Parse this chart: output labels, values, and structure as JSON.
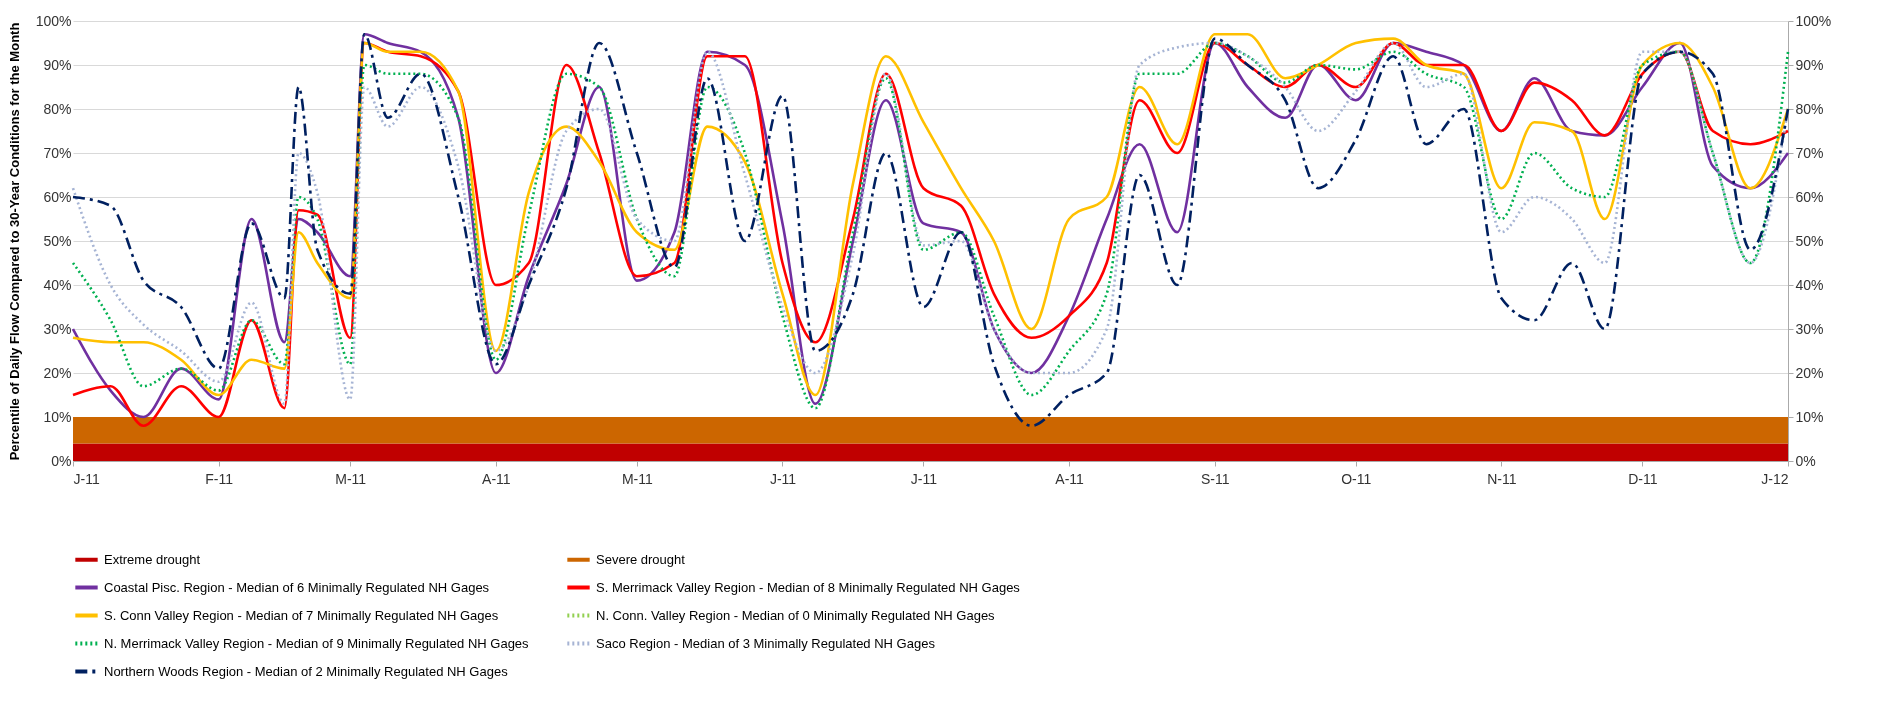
{
  "chart_data": {
    "type": "line",
    "ylabel": "Percentile of Daily Flow Compared to 30-Year Conditions for the Month",
    "x": [
      "2011-01-01",
      "2011-01-09",
      "2011-01-16",
      "2011-01-24",
      "2011-02-01",
      "2011-02-08",
      "2011-02-15",
      "2011-02-18",
      "2011-02-22",
      "2011-03-01",
      "2011-03-04",
      "2011-03-09",
      "2011-03-16",
      "2011-03-24",
      "2011-04-01",
      "2011-04-08",
      "2011-04-16",
      "2011-04-23",
      "2011-05-01",
      "2011-05-09",
      "2011-05-16",
      "2011-05-24",
      "2011-06-01",
      "2011-06-08",
      "2011-06-16",
      "2011-06-23",
      "2011-07-01",
      "2011-07-09",
      "2011-07-16",
      "2011-07-24",
      "2011-08-01",
      "2011-08-09",
      "2011-08-16",
      "2011-08-24",
      "2011-09-01",
      "2011-09-08",
      "2011-09-16",
      "2011-09-23",
      "2011-10-01",
      "2011-10-09",
      "2011-10-16",
      "2011-10-24",
      "2011-11-01",
      "2011-11-08",
      "2011-11-16",
      "2011-11-23",
      "2011-12-01",
      "2011-12-09",
      "2011-12-16",
      "2011-12-24",
      "2012-01-01"
    ],
    "xlim": [
      "2011-01-01",
      "2012-01-01"
    ],
    "xticks": [
      {
        "value": "2011-01-01",
        "label": "J-11"
      },
      {
        "value": "2011-02-01",
        "label": "F-11"
      },
      {
        "value": "2011-03-01",
        "label": "M-11"
      },
      {
        "value": "2011-04-01",
        "label": "A-11"
      },
      {
        "value": "2011-05-01",
        "label": "M-11"
      },
      {
        "value": "2011-06-01",
        "label": "J-11"
      },
      {
        "value": "2011-07-01",
        "label": "J-11"
      },
      {
        "value": "2011-08-01",
        "label": "A-11"
      },
      {
        "value": "2011-09-01",
        "label": "S-11"
      },
      {
        "value": "2011-10-01",
        "label": "O-11"
      },
      {
        "value": "2011-11-01",
        "label": "N-11"
      },
      {
        "value": "2011-12-01",
        "label": "D-11"
      },
      {
        "value": "2012-01-01",
        "label": "J-12"
      }
    ],
    "ylim": [
      0,
      100
    ],
    "yticks": [
      {
        "value": 0,
        "label": "0%"
      },
      {
        "value": 10,
        "label": "10%"
      },
      {
        "value": 20,
        "label": "20%"
      },
      {
        "value": 30,
        "label": "30%"
      },
      {
        "value": 40,
        "label": "40%"
      },
      {
        "value": 50,
        "label": "50%"
      },
      {
        "value": 60,
        "label": "60%"
      },
      {
        "value": 70,
        "label": "70%"
      },
      {
        "value": 80,
        "label": "80%"
      },
      {
        "value": 90,
        "label": "90%"
      },
      {
        "value": 100,
        "label": "100%"
      }
    ],
    "y2lim": [
      0,
      100
    ],
    "y2ticks": [
      {
        "value": 0,
        "label": "0%"
      },
      {
        "value": 10,
        "label": "10%"
      },
      {
        "value": 20,
        "label": "20%"
      },
      {
        "value": 30,
        "label": "30%"
      },
      {
        "value": 40,
        "label": "40%"
      },
      {
        "value": 50,
        "label": "50%"
      },
      {
        "value": 60,
        "label": "60%"
      },
      {
        "value": 70,
        "label": "70%"
      },
      {
        "value": 80,
        "label": "80%"
      },
      {
        "value": 90,
        "label": "90%"
      },
      {
        "value": 100,
        "label": "100%"
      }
    ],
    "grid": "y",
    "legend": "bottom",
    "bands": [
      {
        "axis": "y",
        "from": 0,
        "to": 4,
        "label": "Extreme drought",
        "color": "#c00000"
      },
      {
        "axis": "y",
        "from": 4,
        "to": 10,
        "label": "Severe drought",
        "color": "#cc6600"
      }
    ],
    "series": [
      {
        "name": "Coastal Pisc. Region - Median of 6 Minimally Regulated NH Gages",
        "color": "#7030a0",
        "line_style": "solid",
        "values": [
          30,
          16,
          10,
          21,
          14,
          55,
          27,
          55,
          52,
          42,
          97,
          95,
          93,
          78,
          20,
          42,
          63,
          85,
          41,
          52,
          93,
          90,
          54,
          13,
          50,
          82,
          54,
          52,
          30,
          20,
          33,
          55,
          72,
          52,
          95,
          85,
          78,
          90,
          82,
          95,
          93,
          90,
          75,
          87,
          75,
          74,
          85,
          95,
          67,
          62,
          70
        ]
      },
      {
        "name": "S. Merrimack Valley Region - Median of 8 Minimally Regulated NH Gages",
        "color": "#ff0000",
        "line_style": "solid",
        "values": [
          15,
          17,
          8,
          17,
          10,
          32,
          12,
          57,
          56,
          28,
          95,
          93,
          92,
          84,
          40,
          45,
          90,
          70,
          42,
          45,
          92,
          92,
          45,
          27,
          55,
          88,
          62,
          58,
          38,
          28,
          33,
          45,
          82,
          70,
          95,
          90,
          85,
          90,
          85,
          95,
          90,
          90,
          75,
          86,
          82,
          74,
          88,
          93,
          75,
          72,
          75
        ]
      },
      {
        "name": "S. Conn Valley Region - Median of 7 Minimally Regulated NH Gages",
        "color": "#ffc000",
        "line_style": "solid",
        "values": [
          28,
          27,
          27,
          23,
          15,
          23,
          21,
          52,
          45,
          37,
          95,
          93,
          93,
          84,
          25,
          61,
          76,
          68,
          52,
          48,
          76,
          68,
          38,
          15,
          63,
          92,
          77,
          62,
          50,
          30,
          55,
          60,
          85,
          72,
          97,
          97,
          87,
          90,
          95,
          96,
          90,
          88,
          62,
          77,
          75,
          55,
          90,
          95,
          85,
          62,
          80
        ]
      },
      {
        "name": "N. Conn. Valley Region - Median of 0 Minimally Regulated NH Gages",
        "color": "#92d050",
        "line_style": "dotted",
        "values": [
          null,
          null,
          null,
          null,
          null,
          null,
          null,
          null,
          null,
          null,
          null,
          null,
          null,
          null,
          null,
          null,
          null,
          null,
          null,
          null,
          null,
          null,
          null,
          null,
          null,
          null,
          null,
          null,
          null,
          null,
          null,
          null,
          null,
          null,
          null,
          null,
          null,
          null,
          null,
          null,
          null,
          null,
          null,
          null,
          null,
          null,
          null,
          null,
          null,
          null,
          null
        ]
      },
      {
        "name": "N. Merrimack Valley Region - Median of 9 Minimally Regulated NH Gages",
        "color": "#00b050",
        "line_style": "dotted",
        "values": [
          45,
          32,
          17,
          21,
          16,
          32,
          22,
          60,
          55,
          22,
          90,
          88,
          88,
          78,
          23,
          56,
          88,
          85,
          55,
          42,
          85,
          70,
          33,
          12,
          52,
          87,
          48,
          52,
          33,
          15,
          25,
          38,
          88,
          88,
          95,
          92,
          86,
          90,
          89,
          93,
          88,
          85,
          55,
          70,
          62,
          60,
          90,
          93,
          70,
          45,
          93
        ]
      },
      {
        "name": "Saco Region - Median of 3 Minimally Regulated NH Gages",
        "color": "#a6b4d4",
        "line_style": "dotted",
        "values": [
          62,
          40,
          31,
          25,
          18,
          36,
          13,
          70,
          61,
          14,
          85,
          76,
          85,
          67,
          25,
          40,
          75,
          80,
          55,
          50,
          93,
          65,
          35,
          20,
          47,
          88,
          49,
          50,
          30,
          20,
          20,
          30,
          90,
          94,
          95,
          92,
          85,
          75,
          84,
          95,
          85,
          88,
          52,
          60,
          55,
          45,
          93,
          93,
          70,
          45,
          80
        ]
      },
      {
        "name": "Northern Woods Region - Median of 2 Minimally Regulated NH Gages",
        "color": "#002060",
        "line_style": "dashed",
        "values": [
          60,
          58,
          41,
          35,
          21,
          54,
          37,
          85,
          48,
          38,
          97,
          78,
          88,
          60,
          22,
          40,
          62,
          95,
          70,
          44,
          87,
          50,
          83,
          25,
          38,
          70,
          35,
          52,
          22,
          8,
          15,
          20,
          65,
          40,
          96,
          90,
          82,
          62,
          73,
          92,
          72,
          80,
          37,
          32,
          45,
          30,
          88,
          93,
          88,
          48,
          80
        ]
      }
    ]
  }
}
